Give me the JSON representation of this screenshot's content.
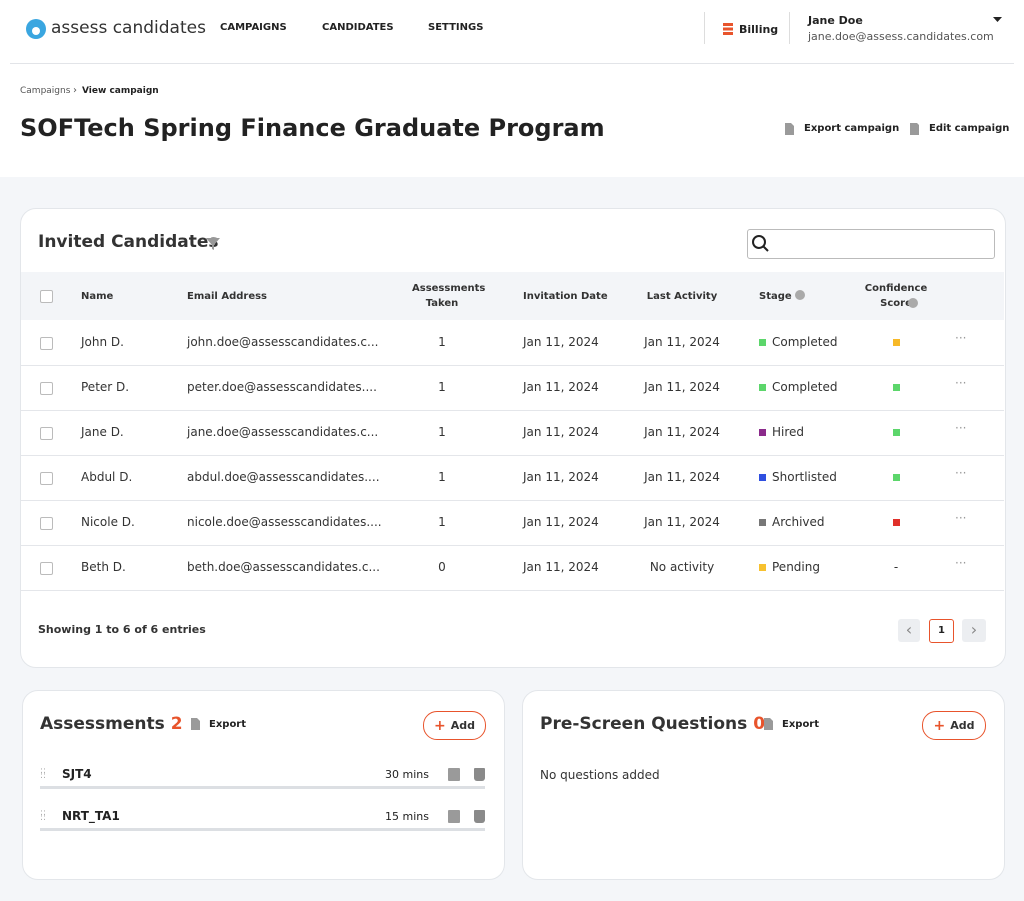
{
  "header": {
    "logo": "assess candidates",
    "nav": [
      "CAMPAIGNS",
      "CANDIDATES",
      "SETTINGS"
    ],
    "billing": "Billing",
    "user_name": "Jane Doe",
    "user_email": "jane.doe@assess.candidates.com"
  },
  "breadcrumb": [
    "Campaigns",
    "View campaign"
  ],
  "page": {
    "title": "SOFTech Spring Finance Graduate Program",
    "actions": [
      "Export campaign",
      "Edit campaign"
    ]
  },
  "candidates": {
    "title": "Invited Candidates",
    "columns": [
      "Name",
      "Email Address",
      "Assessments Taken",
      "Invitation Date",
      "Last Activity",
      "Stage",
      "Confidence Score"
    ],
    "rows": [
      {
        "name": "John D.",
        "email": "john.doe@assesscandidates.c...",
        "assessments": 1,
        "invited": "Jan 11, 2024",
        "last_activity": "Jan 11, 2024",
        "stage": "Completed",
        "stage_color": "#5cd66b",
        "confidence": "#f7b928"
      },
      {
        "name": "Peter D.",
        "email": "peter.doe@assesscandidates....",
        "assessments": 1,
        "invited": "Jan 11, 2024",
        "last_activity": "Jan 11, 2024",
        "stage": "Completed",
        "stage_color": "#5cd66b",
        "confidence": "#5cd66b"
      },
      {
        "name": "Jane D.",
        "email": "jane.doe@assesscandidates.c...",
        "assessments": 1,
        "invited": "Jan 11, 2024",
        "last_activity": "Jan 11, 2024",
        "stage": "Hired",
        "stage_color": "#8b2a8b",
        "confidence": "#5cd66b"
      },
      {
        "name": "Abdul D.",
        "email": "abdul.doe@assesscandidates....",
        "assessments": 1,
        "invited": "Jan 11, 2024",
        "last_activity": "Jan 11, 2024",
        "stage": "Shortlisted",
        "stage_color": "#2f4fe0",
        "confidence": "#5cd66b"
      },
      {
        "name": "Nicole D.",
        "email": "nicole.doe@assesscandidates....",
        "assessments": 1,
        "invited": "Jan 11, 2024",
        "last_activity": "Jan 11, 2024",
        "stage": "Archived",
        "stage_color": "#777777",
        "confidence": "#e0302a"
      },
      {
        "name": "Beth D.",
        "email": "beth.doe@assesscandidates.c...",
        "assessments": 0,
        "invited": "Jan 11, 2024",
        "last_activity": "No activity",
        "stage": "Pending",
        "stage_color": "#f7c12f",
        "confidence": "-"
      }
    ],
    "footer": "Showing 1 to 6 of 6 entries",
    "current_page": 1
  },
  "assessments": {
    "title": "Assessments",
    "count": 2,
    "export": "Export",
    "add": "Add",
    "items": [
      {
        "name": "SJT4",
        "duration": "30 mins"
      },
      {
        "name": "NRT_TA1",
        "duration": "15 mins"
      }
    ]
  },
  "prescreen": {
    "title": "Pre-Screen Questions",
    "count": 0,
    "export": "Export",
    "add": "Add",
    "empty": "No questions added"
  }
}
